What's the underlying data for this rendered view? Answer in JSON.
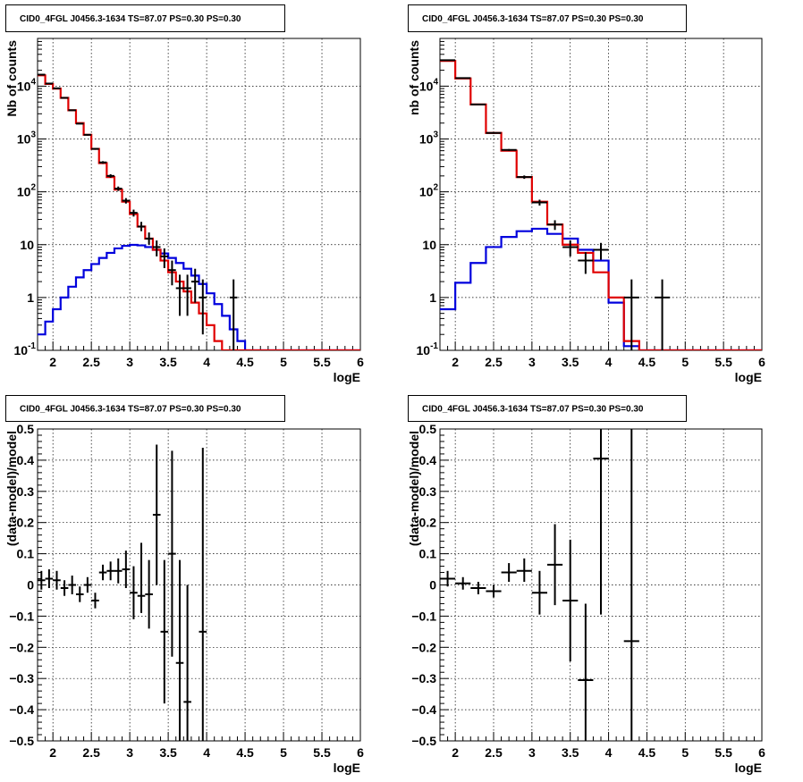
{
  "chart_data": [
    {
      "type": "histogram",
      "title": "CID0_4FGL J0456.3-1634 TS=87.07 PS=0.30 PS=0.30",
      "xlabel": "logE",
      "ylabel": "Nb of counts",
      "xlim": [
        1.8,
        6.0
      ],
      "ylim": [
        0.1,
        80000
      ],
      "yscale": "log",
      "grid": true,
      "xticks": [
        "2",
        "2.5",
        "3",
        "3.5",
        "4",
        "4.5",
        "5",
        "5.5",
        "6"
      ],
      "yticks": [
        {
          "v": 0.1,
          "label": "10",
          "exp": "-1"
        },
        {
          "v": 1,
          "label": "1",
          "exp": ""
        },
        {
          "v": 10,
          "label": "10",
          "exp": ""
        },
        {
          "v": 100,
          "label": "10",
          "exp": "2"
        },
        {
          "v": 1000,
          "label": "10",
          "exp": "3"
        },
        {
          "v": 10000,
          "label": "10",
          "exp": "4"
        }
      ],
      "bin_edges": [
        1.8,
        1.9,
        2.0,
        2.1,
        2.2,
        2.3,
        2.4,
        2.5,
        2.6,
        2.7,
        2.8,
        2.9,
        3.0,
        3.1,
        3.2,
        3.3,
        3.4,
        3.5,
        3.6,
        3.7,
        3.8,
        3.9,
        4.0,
        4.1,
        4.2,
        4.3,
        4.4,
        4.5,
        4.6,
        4.7,
        4.8,
        4.9,
        5.0,
        5.1,
        5.2,
        5.3,
        5.4,
        5.5,
        5.6,
        5.7,
        5.8,
        5.9,
        6.0
      ],
      "series": [
        {
          "role": "total",
          "color": "#e00000",
          "values": [
            16000,
            11000,
            9000,
            6000,
            3500,
            2000,
            1200,
            650,
            350,
            190,
            110,
            65,
            38,
            22,
            13,
            8,
            5,
            3,
            2,
            1.3,
            0.8,
            0.5,
            0.3,
            0.15,
            0.1,
            0.1,
            0.1,
            0.1,
            0.1,
            0.1,
            0.1,
            0.1,
            0.1,
            0.1,
            0.1,
            0.1,
            0.1,
            0.1,
            0.1,
            0.1,
            0.1,
            0.1
          ]
        },
        {
          "role": "source",
          "color": "#0000dd",
          "values": [
            0.2,
            0.35,
            0.6,
            1.0,
            1.6,
            2.4,
            3.3,
            4.3,
            5.6,
            7.0,
            8.5,
            9.5,
            9.9,
            9.7,
            9.0,
            8.0,
            6.8,
            5.6,
            4.5,
            3.5,
            2.6,
            1.8,
            1.2,
            0.75,
            0.45,
            0.25,
            0.15,
            0.1,
            0.1,
            0.1,
            0.1,
            0.1,
            0.1,
            0.1,
            0.1,
            0.1,
            0.1,
            0.1,
            0.1,
            0.1,
            0.1,
            0.1
          ]
        }
      ],
      "data_points": [
        {
          "x": 1.85,
          "y": 16500,
          "lo": 16300,
          "hi": 16700
        },
        {
          "x": 1.95,
          "y": 11200,
          "lo": 11000,
          "hi": 11400
        },
        {
          "x": 2.05,
          "y": 9100,
          "lo": 8900,
          "hi": 9300
        },
        {
          "x": 2.15,
          "y": 6000,
          "lo": 5900,
          "hi": 6100
        },
        {
          "x": 2.25,
          "y": 3500,
          "lo": 3400,
          "hi": 3600
        },
        {
          "x": 2.35,
          "y": 1950,
          "lo": 1900,
          "hi": 2000
        },
        {
          "x": 2.45,
          "y": 1200,
          "lo": 1160,
          "hi": 1240
        },
        {
          "x": 2.55,
          "y": 650,
          "lo": 625,
          "hi": 675
        },
        {
          "x": 2.65,
          "y": 360,
          "lo": 340,
          "hi": 380
        },
        {
          "x": 2.75,
          "y": 200,
          "lo": 185,
          "hi": 215
        },
        {
          "x": 2.85,
          "y": 115,
          "lo": 104,
          "hi": 126
        },
        {
          "x": 2.95,
          "y": 68,
          "lo": 60,
          "hi": 76
        },
        {
          "x": 3.05,
          "y": 40,
          "lo": 34,
          "hi": 46
        },
        {
          "x": 3.15,
          "y": 22,
          "lo": 18,
          "hi": 27
        },
        {
          "x": 3.25,
          "y": 13,
          "lo": 10,
          "hi": 17
        },
        {
          "x": 3.35,
          "y": 9,
          "lo": 6,
          "hi": 12
        },
        {
          "x": 3.45,
          "y": 6,
          "lo": 3.6,
          "hi": 8.5
        },
        {
          "x": 3.55,
          "y": 3.3,
          "lo": 1.7,
          "hi": 5
        },
        {
          "x": 3.65,
          "y": 1.5,
          "lo": 0.45,
          "hi": 2.7
        },
        {
          "x": 3.75,
          "y": 1.5,
          "lo": 0.45,
          "hi": 2.7
        },
        {
          "x": 3.85,
          "y": 2,
          "lo": 0.8,
          "hi": 3.5
        },
        {
          "x": 3.95,
          "y": 1,
          "lo": 0.2,
          "hi": 2.2
        },
        {
          "x": 4.35,
          "y": 1,
          "lo": 0.1,
          "hi": 2.2
        }
      ]
    },
    {
      "type": "histogram",
      "title": "CID0_4FGL J0456.3-1634 TS=87.07 PS=0.30 PS=0.30",
      "xlabel": "logE",
      "ylabel": "nb of counts",
      "xlim": [
        1.8,
        6.0
      ],
      "ylim": [
        0.1,
        80000
      ],
      "yscale": "log",
      "grid": true,
      "xticks": [
        "2",
        "2.5",
        "3",
        "3.5",
        "4",
        "4.5",
        "5",
        "5.5",
        "6"
      ],
      "yticks": [
        {
          "v": 0.1,
          "label": "10",
          "exp": "-1"
        },
        {
          "v": 1,
          "label": "1",
          "exp": ""
        },
        {
          "v": 10,
          "label": "10",
          "exp": ""
        },
        {
          "v": 100,
          "label": "10",
          "exp": "2"
        },
        {
          "v": 1000,
          "label": "10",
          "exp": "3"
        },
        {
          "v": 10000,
          "label": "10",
          "exp": "4"
        }
      ],
      "bin_edges": [
        1.8,
        2.0,
        2.2,
        2.4,
        2.6,
        2.8,
        3.0,
        3.2,
        3.4,
        3.6,
        3.8,
        4.0,
        4.2,
        4.4,
        4.6,
        4.8,
        5.0,
        5.2,
        5.4,
        5.6,
        5.8,
        6.0
      ],
      "series": [
        {
          "role": "total",
          "color": "#e00000",
          "values": [
            30000,
            14000,
            4500,
            1300,
            600,
            190,
            65,
            24,
            10,
            7,
            3,
            1,
            0.15,
            0.1,
            0.1,
            0.1,
            0.1,
            0.1,
            0.1,
            0.1,
            0.1
          ]
        },
        {
          "role": "source",
          "color": "#0000dd",
          "values": [
            0.6,
            1.9,
            4.5,
            9,
            14,
            18,
            20,
            16,
            13,
            8,
            5,
            0.8,
            0.12,
            0.1,
            0.1,
            0.1,
            0.1,
            0.1,
            0.1,
            0.1,
            0.1
          ]
        }
      ],
      "data_points": [
        {
          "x": 1.9,
          "y": 31000,
          "lo": 30700,
          "hi": 31300
        },
        {
          "x": 2.1,
          "y": 14200,
          "lo": 14000,
          "hi": 14400
        },
        {
          "x": 2.3,
          "y": 4500,
          "lo": 4400,
          "hi": 4600
        },
        {
          "x": 2.5,
          "y": 1300,
          "lo": 1260,
          "hi": 1340
        },
        {
          "x": 2.7,
          "y": 620,
          "lo": 595,
          "hi": 645
        },
        {
          "x": 2.9,
          "y": 190,
          "lo": 176,
          "hi": 204
        },
        {
          "x": 3.1,
          "y": 63,
          "lo": 55,
          "hi": 71
        },
        {
          "x": 3.3,
          "y": 24,
          "lo": 19,
          "hi": 29
        },
        {
          "x": 3.5,
          "y": 9,
          "lo": 6,
          "hi": 12
        },
        {
          "x": 3.7,
          "y": 5,
          "lo": 2.8,
          "hi": 7.2
        },
        {
          "x": 3.9,
          "y": 8,
          "lo": 5.2,
          "hi": 10.8
        },
        {
          "x": 4.3,
          "y": 1,
          "lo": 0.1,
          "hi": 2.2
        },
        {
          "x": 4.7,
          "y": 1,
          "lo": 0.1,
          "hi": 2.2
        }
      ]
    },
    {
      "type": "scatter",
      "title": "CID0_4FGL J0456.3-1634 TS=87.07 PS=0.30 PS=0.30",
      "xlabel": "logE",
      "ylabel": "(data-model)/model",
      "xlim": [
        1.8,
        6.0
      ],
      "ylim": [
        -0.5,
        0.5
      ],
      "grid": true,
      "xticks": [
        "2",
        "2.5",
        "3",
        "3.5",
        "4",
        "4.5",
        "5",
        "5.5",
        "6"
      ],
      "yticks": [
        "-0.5",
        "-0.4",
        "-0.3",
        "-0.2",
        "-0.1",
        "0",
        "0.1",
        "0.2",
        "0.3",
        "0.4",
        "0.5"
      ],
      "bin_halfwidth": 0.05,
      "data_points": [
        {
          "x": 1.85,
          "y": 0.015,
          "lo": -0.015,
          "hi": 0.045
        },
        {
          "x": 1.95,
          "y": 0.02,
          "lo": -0.01,
          "hi": 0.05
        },
        {
          "x": 2.05,
          "y": 0.015,
          "lo": -0.015,
          "hi": 0.045
        },
        {
          "x": 2.15,
          "y": -0.01,
          "lo": -0.035,
          "hi": 0.015
        },
        {
          "x": 2.25,
          "y": 0.0,
          "lo": -0.03,
          "hi": 0.03
        },
        {
          "x": 2.35,
          "y": -0.03,
          "lo": -0.055,
          "hi": -0.005
        },
        {
          "x": 2.45,
          "y": 0.0,
          "lo": -0.025,
          "hi": 0.025
        },
        {
          "x": 2.55,
          "y": -0.05,
          "lo": -0.075,
          "hi": -0.025
        },
        {
          "x": 2.65,
          "y": 0.04,
          "lo": 0.015,
          "hi": 0.065
        },
        {
          "x": 2.75,
          "y": 0.045,
          "lo": 0.015,
          "hi": 0.075
        },
        {
          "x": 2.85,
          "y": 0.045,
          "lo": 0.005,
          "hi": 0.085
        },
        {
          "x": 2.95,
          "y": 0.05,
          "lo": -0.01,
          "hi": 0.11
        },
        {
          "x": 3.05,
          "y": -0.025,
          "lo": -0.11,
          "hi": 0.06
        },
        {
          "x": 3.15,
          "y": -0.035,
          "lo": -0.09,
          "hi": 0.135
        },
        {
          "x": 3.25,
          "y": -0.03,
          "lo": -0.14,
          "hi": 0.08
        },
        {
          "x": 3.35,
          "y": 0.225,
          "lo": 0.0,
          "hi": 0.45
        },
        {
          "x": 3.45,
          "y": -0.15,
          "lo": -0.38,
          "hi": 0.08
        },
        {
          "x": 3.55,
          "y": 0.1,
          "lo": -0.23,
          "hi": 0.43
        },
        {
          "x": 3.65,
          "y": -0.25,
          "lo": -0.5,
          "hi": 0.08
        },
        {
          "x": 3.75,
          "y": -0.375,
          "lo": -0.5,
          "hi": 0.0
        },
        {
          "x": 3.95,
          "y": -0.15,
          "lo": -0.5,
          "hi": 0.44
        }
      ]
    },
    {
      "type": "scatter",
      "title": "CID0_4FGL J0456.3-1634 TS=87.07 PS=0.30 PS=0.30",
      "xlabel": "logE",
      "ylabel": "(data-model)/model",
      "xlim": [
        1.8,
        6.0
      ],
      "ylim": [
        -0.5,
        0.5
      ],
      "grid": true,
      "xticks": [
        "2",
        "2.5",
        "3",
        "3.5",
        "4",
        "4.5",
        "5",
        "5.5",
        "6"
      ],
      "yticks": [
        "-0.5",
        "-0.4",
        "-0.3",
        "-0.2",
        "-0.1",
        "0",
        "0.1",
        "0.2",
        "0.3",
        "0.4",
        "0.5"
      ],
      "bin_halfwidth": 0.1,
      "data_points": [
        {
          "x": 1.9,
          "y": 0.02,
          "lo": -0.005,
          "hi": 0.045
        },
        {
          "x": 2.1,
          "y": 0.005,
          "lo": -0.015,
          "hi": 0.025
        },
        {
          "x": 2.3,
          "y": -0.01,
          "lo": -0.03,
          "hi": 0.01
        },
        {
          "x": 2.5,
          "y": -0.02,
          "lo": -0.04,
          "hi": 0.0
        },
        {
          "x": 2.7,
          "y": 0.04,
          "lo": 0.01,
          "hi": 0.07
        },
        {
          "x": 2.9,
          "y": 0.045,
          "lo": 0.01,
          "hi": 0.085
        },
        {
          "x": 3.1,
          "y": -0.025,
          "lo": -0.095,
          "hi": 0.045
        },
        {
          "x": 3.3,
          "y": 0.065,
          "lo": -0.065,
          "hi": 0.195
        },
        {
          "x": 3.5,
          "y": -0.05,
          "lo": -0.245,
          "hi": 0.145
        },
        {
          "x": 3.7,
          "y": -0.305,
          "lo": -0.5,
          "hi": -0.06
        },
        {
          "x": 3.9,
          "y": 0.405,
          "lo": -0.095,
          "hi": 0.5
        },
        {
          "x": 4.3,
          "y": -0.18,
          "lo": -0.5,
          "hi": 0.5
        }
      ]
    }
  ]
}
